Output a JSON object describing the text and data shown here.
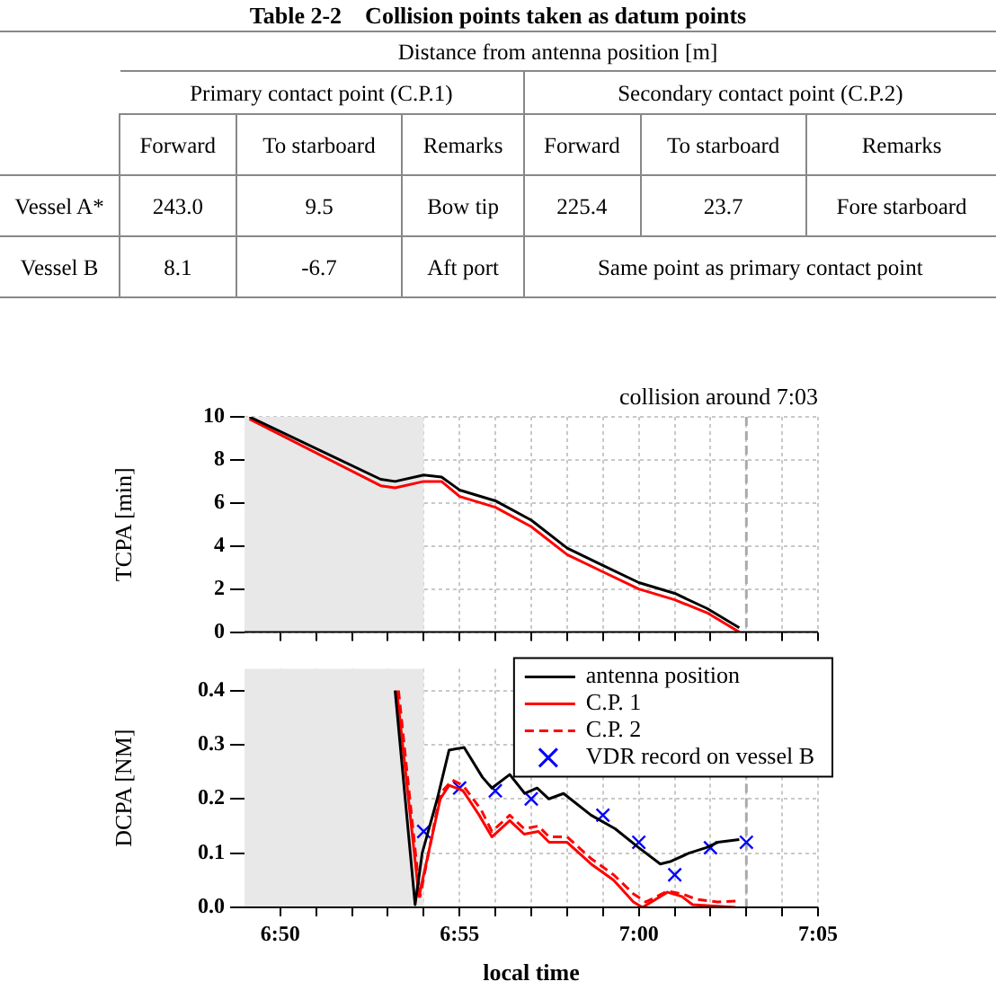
{
  "chart_data": [
    {
      "type": "other",
      "title": "Table 2-2　Collision points taken as datum points",
      "annotations": [
        "Distance from antenna position [m]",
        "Primary contact point (C.P.1)",
        "Secondary contact point (C.P.2)",
        "Forward",
        "To starboard",
        "Remarks",
        "Forward",
        "To starboard",
        "Remarks",
        "Vessel A*",
        "243.0",
        "9.5",
        "Bow tip",
        "225.4",
        "23.7",
        "Fore starboard",
        "Vessel B",
        "8.1",
        "-6.7",
        "Aft port",
        "Same point as primary contact point"
      ]
    },
    {
      "type": "line",
      "ylabel": "TCPA [min]",
      "xlim": [
        6.8167,
        7.0833
      ],
      "ylim": [
        0,
        10
      ],
      "yticks": [
        0,
        2,
        4,
        6,
        8,
        10
      ],
      "xticks": [
        {
          "value": 6.8333,
          "label": null
        },
        {
          "value": 6.85,
          "label": null
        },
        {
          "value": 6.8667,
          "label": null
        },
        {
          "value": 6.8833,
          "label": null
        },
        {
          "value": 6.9,
          "label": null
        },
        {
          "value": 6.9167,
          "label": null
        },
        {
          "value": 6.9333,
          "label": null
        },
        {
          "value": 6.95,
          "label": null
        },
        {
          "value": 6.9667,
          "label": null
        },
        {
          "value": 6.9833,
          "label": null
        },
        {
          "value": 7.0,
          "label": null
        },
        {
          "value": 7.0167,
          "label": null
        },
        {
          "value": 7.0333,
          "label": null
        },
        {
          "value": 7.05,
          "label": null
        },
        {
          "value": 7.0667,
          "label": null
        },
        {
          "value": 7.0833,
          "label": null
        }
      ],
      "tick_labels": "y",
      "grid": true,
      "bands": [
        {
          "axis": "x",
          "from": 6.8167,
          "to": 6.9,
          "color": "#e8e8e8"
        }
      ],
      "ref_lines": [
        {
          "axis": "x",
          "value": 7.05,
          "label": "collision around 7:03",
          "color": "#aaaaaa",
          "line_style": "dashed"
        }
      ],
      "series": [
        {
          "type": "line",
          "color": "#000000",
          "x": [
            6.819,
            6.88,
            6.8867,
            6.9,
            6.9083,
            6.9167,
            6.9333,
            6.95,
            6.9667,
            6.9833,
            7.0,
            7.0167,
            7.0317,
            7.0467
          ],
          "values": [
            10.0,
            7.1,
            7.0,
            7.3,
            7.2,
            6.6,
            6.1,
            5.2,
            3.9,
            3.1,
            2.3,
            1.8,
            1.1,
            0.2
          ]
        },
        {
          "type": "line",
          "color": "#ff0000",
          "x": [
            6.819,
            6.88,
            6.8867,
            6.9,
            6.9083,
            6.9167,
            6.9333,
            6.95,
            6.9667,
            6.9833,
            7.0,
            7.0167,
            7.0317,
            7.0467
          ],
          "values": [
            9.9,
            6.8,
            6.7,
            7.0,
            7.0,
            6.3,
            5.8,
            4.9,
            3.6,
            2.8,
            2.0,
            1.5,
            0.9,
            0.0
          ]
        }
      ]
    },
    {
      "type": "line",
      "ylabel": "DCPA [NM]",
      "xlabel": "local time",
      "xlim": [
        6.8167,
        7.0833
      ],
      "ylim": [
        0,
        0.44
      ],
      "yticks": [
        {
          "value": 0,
          "label": "0.0"
        },
        0.1,
        0.2,
        0.3,
        0.4
      ],
      "xticks": [
        {
          "value": 6.8333,
          "label": "6:50"
        },
        {
          "value": 6.85,
          "label": null
        },
        {
          "value": 6.8667,
          "label": null
        },
        {
          "value": 6.8833,
          "label": null
        },
        {
          "value": 6.9,
          "label": null
        },
        {
          "value": 6.9167,
          "label": "6:55"
        },
        {
          "value": 6.9333,
          "label": null
        },
        {
          "value": 6.95,
          "label": null
        },
        {
          "value": 6.9667,
          "label": null
        },
        {
          "value": 6.9833,
          "label": null
        },
        {
          "value": 7.0,
          "label": "7:00"
        },
        {
          "value": 7.0167,
          "label": null
        },
        {
          "value": 7.0333,
          "label": null
        },
        {
          "value": 7.05,
          "label": null
        },
        {
          "value": 7.0667,
          "label": null
        },
        {
          "value": 7.0833,
          "label": "7:05"
        }
      ],
      "grid": true,
      "legend": "top right",
      "bands": [
        {
          "axis": "x",
          "from": 6.8167,
          "to": 6.9,
          "color": "#e8e8e8"
        }
      ],
      "ref_lines": [
        {
          "axis": "x",
          "value": 7.05,
          "color": "#aaaaaa",
          "line_style": "dashed"
        }
      ],
      "series": [
        {
          "type": "line",
          "name": "antenna position",
          "color": "#000000",
          "x": [
            6.8867,
            6.896,
            6.8993,
            6.9063,
            6.9118,
            6.9188,
            6.9273,
            6.9317,
            6.94,
            6.947,
            6.9527,
            6.9582,
            6.965,
            6.9778,
            6.989,
            7.0,
            7.01,
            7.015,
            7.0233,
            7.0312,
            7.0367,
            7.0467
          ],
          "values": [
            0.4,
            0.005,
            0.1,
            0.2,
            0.29,
            0.295,
            0.24,
            0.22,
            0.245,
            0.21,
            0.22,
            0.2,
            0.21,
            0.17,
            0.145,
            0.11,
            0.08,
            0.085,
            0.1,
            0.11,
            0.12,
            0.125
          ]
        },
        {
          "type": "line",
          "name": "C.P. 1",
          "color": "#ff0000",
          "x": [
            6.8875,
            6.8978,
            6.9077,
            6.9118,
            6.9183,
            6.9258,
            6.9317,
            6.94,
            6.9467,
            6.9533,
            6.9583,
            6.9667,
            6.9778,
            6.9883,
            6.9975,
            7.0017,
            7.0133,
            7.02,
            7.025,
            7.045
          ],
          "values": [
            0.4,
            0.02,
            0.2,
            0.225,
            0.215,
            0.17,
            0.13,
            0.16,
            0.135,
            0.14,
            0.12,
            0.12,
            0.08,
            0.05,
            0.01,
            0.0,
            0.028,
            0.02,
            0.005,
            0.0
          ]
        },
        {
          "type": "line",
          "name": "C.P. 2",
          "color": "#ff0000",
          "line_style": "dashed",
          "x": [
            6.8883,
            6.8983,
            6.9077,
            6.9133,
            6.9183,
            6.9267,
            6.9317,
            6.94,
            6.9467,
            6.9533,
            6.9583,
            6.9667,
            6.9778,
            6.9883,
            6.9975,
            7.0033,
            7.0133,
            7.02,
            7.0267,
            7.0367,
            7.0467
          ],
          "values": [
            0.4,
            0.02,
            0.21,
            0.235,
            0.225,
            0.18,
            0.14,
            0.17,
            0.145,
            0.15,
            0.13,
            0.13,
            0.09,
            0.06,
            0.025,
            0.01,
            0.03,
            0.025,
            0.015,
            0.01,
            0.012
          ]
        },
        {
          "type": "scatter",
          "name": "VDR record on vessel B",
          "color": "#0000ff",
          "marker": "cross",
          "x": [
            6.9,
            6.9167,
            6.9333,
            6.95,
            6.9833,
            7.0,
            7.0167,
            7.0333,
            7.05
          ],
          "values": [
            0.14,
            0.22,
            0.215,
            0.2,
            0.17,
            0.12,
            0.06,
            0.11,
            0.12
          ]
        }
      ]
    }
  ]
}
